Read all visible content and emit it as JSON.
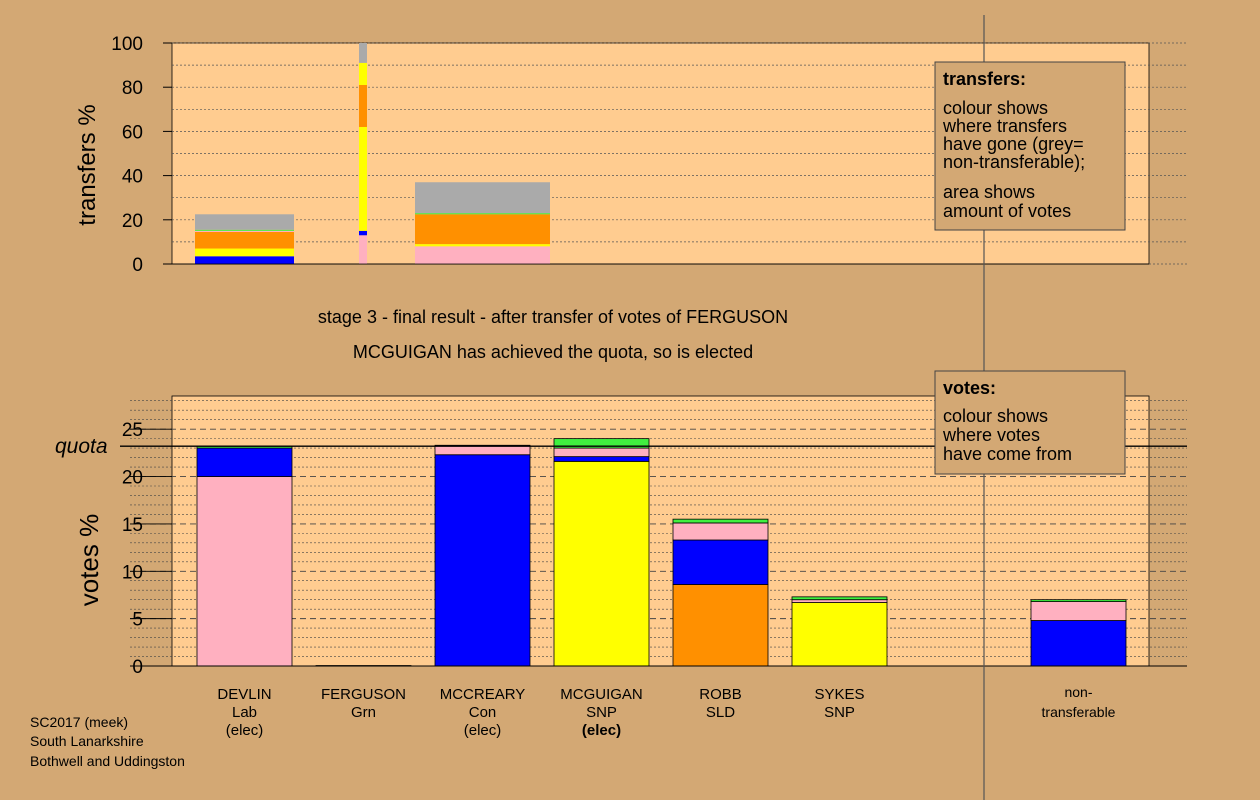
{
  "headings": {
    "stage": "stage 3 - final result - after transfer of votes of FERGUSON",
    "result": "MCGUIGAN has achieved the quota, so is elected"
  },
  "footer": {
    "line1": "SC2017 (meek)",
    "line2": "South Lanarkshire",
    "line3": "Bothwell and Uddingston"
  },
  "colors": {
    "background": "#d3a874",
    "plot_background": "#ffcc90",
    "Lab": "#ffb0c0",
    "Con": "#0000ff",
    "SNP": "#ffff00",
    "SLD": "#ff9000",
    "Grn": "#40f040",
    "nontransferable": "#aaaaaa"
  },
  "chart_data": [
    {
      "id": "transfers",
      "type": "bar",
      "stacked": true,
      "ylabel": "transfers %",
      "ylim": [
        0,
        100
      ],
      "yticks": [
        0,
        20,
        40,
        60,
        80,
        100
      ],
      "legend": {
        "title": "transfers:",
        "lines": [
          "colour shows",
          "where transfers",
          "have gone (grey=",
          "non-transferable);"
        ],
        "lines2": [
          "area shows",
          "amount of votes"
        ],
        "position": "top-right"
      },
      "bars": [
        {
          "stage": 1,
          "width": "wide",
          "segments": [
            {
              "party": "Con",
              "value": 3.5
            },
            {
              "party": "SNP",
              "value": 3.5
            },
            {
              "party": "SLD",
              "value": 7.5
            },
            {
              "party": "Lab",
              "value": 0.5
            },
            {
              "party": "Grn",
              "value": 0.5
            },
            {
              "party": "nontransferable",
              "value": 7
            }
          ]
        },
        {
          "stage": 2,
          "width": "narrow",
          "segments": [
            {
              "party": "Lab",
              "value": 13
            },
            {
              "party": "Con",
              "value": 2
            },
            {
              "party": "SNP",
              "value": 47
            },
            {
              "party": "SLD",
              "value": 19
            },
            {
              "party": "SNP",
              "value": 10
            },
            {
              "party": "nontransferable",
              "value": 9
            }
          ]
        },
        {
          "stage": 3,
          "width": "wide",
          "segments": [
            {
              "party": "Lab",
              "value": 8
            },
            {
              "party": "SNP",
              "value": 1
            },
            {
              "party": "SLD",
              "value": 13.5
            },
            {
              "party": "Grn",
              "value": 0.5
            },
            {
              "party": "nontransferable",
              "value": 14
            }
          ]
        }
      ]
    },
    {
      "id": "votes",
      "type": "bar",
      "stacked": true,
      "ylabel": "votes %",
      "ylim": [
        0,
        28.5
      ],
      "yticks": [
        0,
        5,
        10,
        15,
        20,
        25
      ],
      "quota": 23.2,
      "quota_label": "quota",
      "legend": {
        "title": "votes:",
        "lines": [
          "colour shows",
          "where votes",
          "have come from"
        ],
        "position": "top-right"
      },
      "candidates": [
        {
          "name": "DEVLIN",
          "party": "Lab",
          "status": "(elec)",
          "status_bold": false,
          "segments": [
            {
              "party": "Lab",
              "value": 20.0
            },
            {
              "party": "Con",
              "value": 3.0
            },
            {
              "party": "Grn",
              "value": 0.2
            }
          ]
        },
        {
          "name": "FERGUSON",
          "party": "Grn",
          "status": "",
          "status_bold": false,
          "segments": [
            {
              "party": "Grn",
              "value": 0.05
            }
          ]
        },
        {
          "name": "MCCREARY",
          "party": "Con",
          "status": "(elec)",
          "status_bold": false,
          "segments": [
            {
              "party": "Con",
              "value": 22.3
            },
            {
              "party": "Lab",
              "value": 1.0
            }
          ]
        },
        {
          "name": "MCGUIGAN",
          "party": "SNP",
          "status": "(elec)",
          "status_bold": true,
          "segments": [
            {
              "party": "SNP",
              "value": 21.6
            },
            {
              "party": "Con",
              "value": 0.5
            },
            {
              "party": "Lab",
              "value": 0.9
            },
            {
              "party": "Grn",
              "value": 1.0
            }
          ]
        },
        {
          "name": "ROBB",
          "party": "SLD",
          "status": "",
          "status_bold": false,
          "segments": [
            {
              "party": "SLD",
              "value": 8.6
            },
            {
              "party": "Con",
              "value": 4.7
            },
            {
              "party": "Lab",
              "value": 1.8
            },
            {
              "party": "Grn",
              "value": 0.4
            }
          ]
        },
        {
          "name": "SYKES",
          "party": "SNP",
          "status": "",
          "status_bold": false,
          "segments": [
            {
              "party": "SNP",
              "value": 6.7
            },
            {
              "party": "Lab",
              "value": 0.3
            },
            {
              "party": "Grn",
              "value": 0.3
            }
          ]
        }
      ],
      "nontransferable": {
        "label1": "non-",
        "label2": "transferable",
        "segments": [
          {
            "party": "Con",
            "value": 4.8
          },
          {
            "party": "Lab",
            "value": 2.0
          },
          {
            "party": "Grn",
            "value": 0.2
          }
        ]
      }
    }
  ]
}
